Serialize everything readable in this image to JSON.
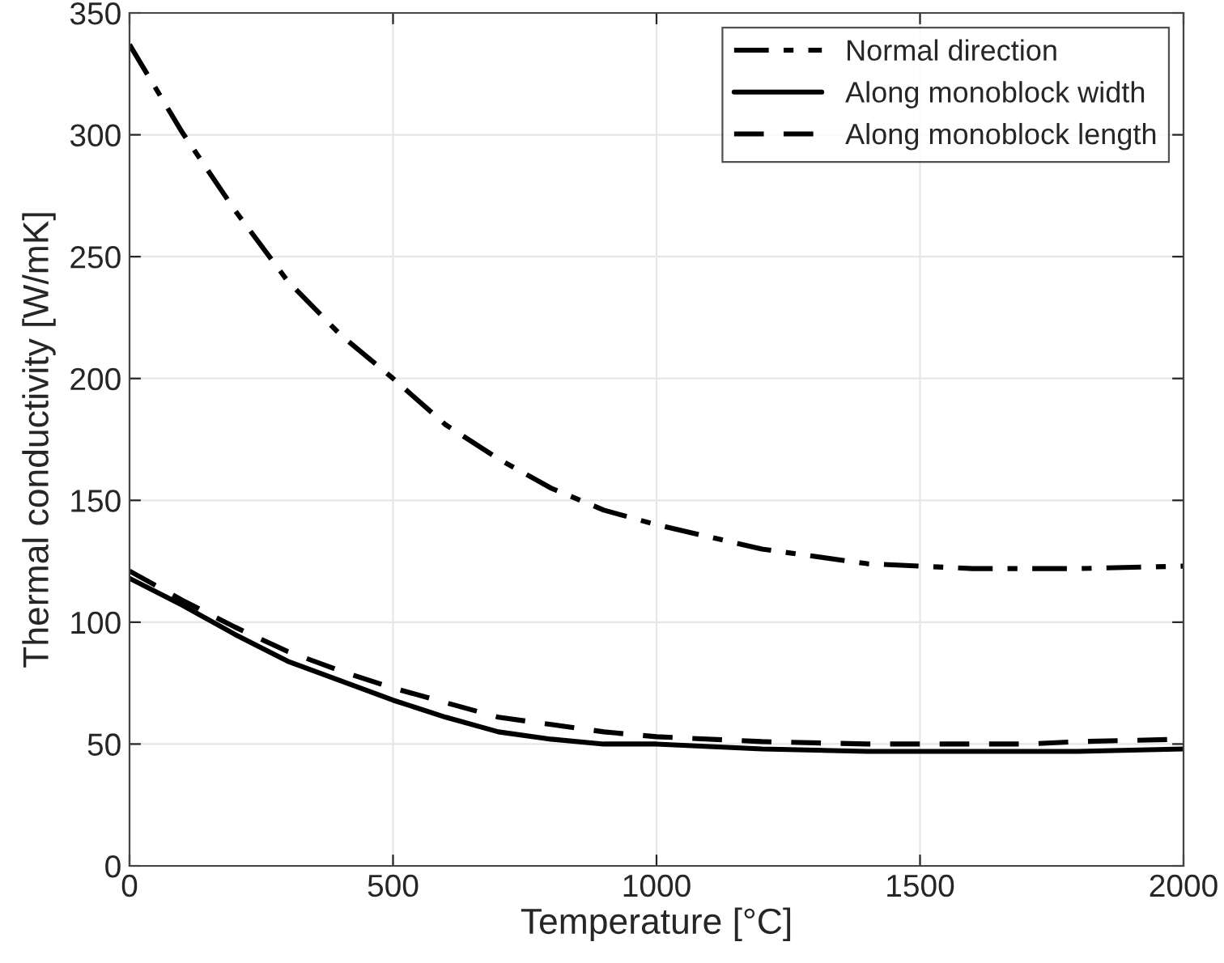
{
  "chart_data": {
    "type": "line",
    "xlabel": "Temperature [°C]",
    "ylabel": "Thermal conductivity [W/mK]",
    "xlim": [
      0,
      2000
    ],
    "ylim": [
      0,
      350
    ],
    "xticks": [
      0,
      500,
      1000,
      1500,
      2000
    ],
    "yticks": [
      0,
      50,
      100,
      150,
      200,
      250,
      300,
      350
    ],
    "grid": true,
    "legend": "top right",
    "marker": "none",
    "x": [
      0,
      100,
      200,
      300,
      400,
      500,
      600,
      700,
      800,
      900,
      1000,
      1200,
      1400,
      1500,
      1600,
      1700,
      1800,
      2000
    ],
    "series": [
      {
        "name": "Normal direction",
        "color": "#000000",
        "line_style": "dashdot",
        "values": [
          337,
          301,
          269,
          240,
          218,
          200,
          181,
          167,
          155,
          146,
          140,
          130,
          124,
          123,
          122,
          122,
          122,
          123
        ]
      },
      {
        "name": "Along monoblock width",
        "color": "#000000",
        "line_style": "solid",
        "values": [
          118,
          107,
          95,
          84,
          76,
          68,
          61,
          55,
          52,
          50,
          50,
          48,
          47,
          47,
          47,
          47,
          47,
          48
        ]
      },
      {
        "name": "Along monoblock length",
        "color": "#000000",
        "line_style": "dashed",
        "values": [
          121,
          109,
          98,
          88,
          80,
          73,
          67,
          61,
          58,
          55,
          53,
          51,
          50,
          50,
          50,
          50,
          51,
          52
        ]
      }
    ]
  }
}
